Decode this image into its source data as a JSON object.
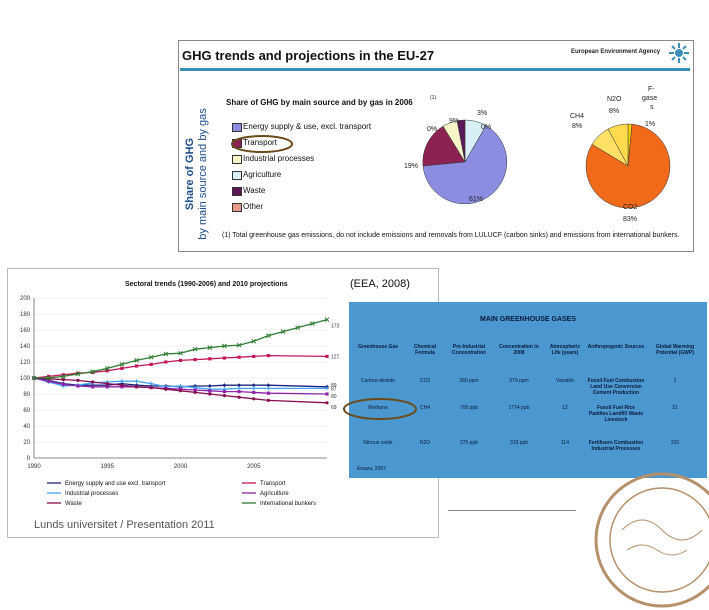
{
  "top": {
    "title": "GHG trends and projections in the EU-27",
    "agency": "European Environment Agency",
    "side_label_line1": "Share of GHG",
    "side_label_line2": "by main source and by gas",
    "share_title": "Share of GHG by main source and by gas in 2006",
    "share_sup": "(1)",
    "legend": [
      {
        "label": "Energy supply & use, excl. transport",
        "color": "#8a8de0"
      },
      {
        "label": "Transport",
        "color": "#8b2252"
      },
      {
        "label": "Industrial processes",
        "color": "#f5f5c8"
      },
      {
        "label": "Agriculture",
        "color": "#d8f0f5"
      },
      {
        "label": "Waste",
        "color": "#5a1a5a"
      },
      {
        "label": "Other",
        "color": "#e89a8a"
      }
    ],
    "pie1": {
      "labels": [
        "0%",
        "9%",
        "3%",
        "0%",
        "19%",
        "61%"
      ]
    },
    "pie2": {
      "labels": {
        "n2o": "N2O",
        "n2o_pct": "8%",
        "fgase": "F-",
        "fgase2": "gase",
        "fgase3": "s",
        "fgase_pct": "1%",
        "ch4": "CH4",
        "ch4_pct": "8%",
        "co2": "CO2",
        "co2_pct": "83%"
      }
    },
    "footnote": "(1) Total greenhouse gas emissions, do not include emissions and removals from LULUCF (carbon sinks) and emissions from international bunkers."
  },
  "chart_data": {
    "type": "line",
    "title": "Sectoral trends (1990-2006) and 2010 projections",
    "x": [
      1990,
      1991,
      1992,
      1993,
      1994,
      1995,
      1996,
      1997,
      1998,
      1999,
      2000,
      2001,
      2002,
      2003,
      2004,
      2005,
      2006,
      2007,
      2008,
      2009,
      2010
    ],
    "xticks": [
      "1990",
      "1995",
      "2000",
      "2005"
    ],
    "ylim": [
      0,
      200
    ],
    "yticks": [
      "0",
      "20",
      "40",
      "60",
      "80",
      "100",
      "120",
      "140",
      "160",
      "180",
      "200"
    ],
    "series": [
      {
        "name": "Energy supply and use excl. transport",
        "color": "#1a237e",
        "marker": "diamond",
        "values": [
          100,
          97,
          93,
          91,
          91,
          91,
          93,
          91,
          90,
          90,
          89,
          90,
          90,
          91,
          91,
          91,
          91,
          null,
          null,
          null,
          89
        ]
      },
      {
        "name": "Transport",
        "color": "#c2185b",
        "marker": "square",
        "values": [
          100,
          102,
          104,
          106,
          107,
          109,
          112,
          115,
          117,
          120,
          122,
          123,
          124,
          125,
          126,
          127,
          128,
          null,
          null,
          null,
          127
        ]
      },
      {
        "name": "Industrial processes",
        "color": "#42a5f5",
        "marker": "star",
        "values": [
          100,
          95,
          90,
          91,
          94,
          95,
          96,
          96,
          93,
          89,
          90,
          88,
          86,
          86,
          87,
          87,
          87,
          null,
          null,
          null,
          87
        ]
      },
      {
        "name": "Agriculture",
        "color": "#8e24aa",
        "marker": "square",
        "values": [
          100,
          96,
          92,
          90,
          89,
          89,
          89,
          89,
          88,
          87,
          86,
          85,
          84,
          83,
          83,
          82,
          81,
          null,
          null,
          null,
          80
        ]
      },
      {
        "name": "Waste",
        "color": "#880e4f",
        "marker": "circle",
        "values": [
          100,
          99,
          98,
          97,
          95,
          93,
          91,
          89,
          88,
          86,
          84,
          82,
          80,
          78,
          76,
          74,
          72,
          null,
          null,
          null,
          69
        ]
      },
      {
        "name": "International bunkers",
        "color": "#2e7d32",
        "marker": "x",
        "values": [
          100,
          100,
          102,
          105,
          108,
          112,
          117,
          122,
          126,
          130,
          131,
          136,
          138,
          140,
          141,
          146,
          153,
          158,
          163,
          168,
          173
        ]
      }
    ],
    "end_labels": [
      "173",
      "127",
      "89",
      "87",
      "80",
      "69"
    ]
  },
  "cite": "(EEA, 2008)",
  "table": {
    "title": "MAIN GREENHOUSE GASES",
    "headers": [
      "Greenhouse Gas",
      "Chemical Formula",
      "Pre-Industrial Concentration",
      "Concentration in 2008",
      "Atmospheric Life (years)",
      "Anthropogenic Sources",
      "Global Warming Potential (GWP)"
    ],
    "rows": [
      [
        "Carbon-dioxide",
        "CO2",
        "280 ppm",
        "379 ppm",
        "Variable",
        "Fossil Fuel Combustion Land Use Conversion Cement Production",
        "1"
      ],
      [
        "Methane",
        "CH4",
        "700 ppb",
        "1774 ppb",
        "12",
        "Fossil Fuel Rice Paddies Landfill Waste Livestock",
        "21"
      ],
      [
        "Nitrous oxide",
        "N2O",
        "275 ppb",
        "319 ppb",
        "114",
        "Fertilisers Combustion Industrial Processes",
        "310"
      ]
    ],
    "source": "Ewaza, 2007"
  },
  "footer": "Lunds universitet / Presentation 2011"
}
